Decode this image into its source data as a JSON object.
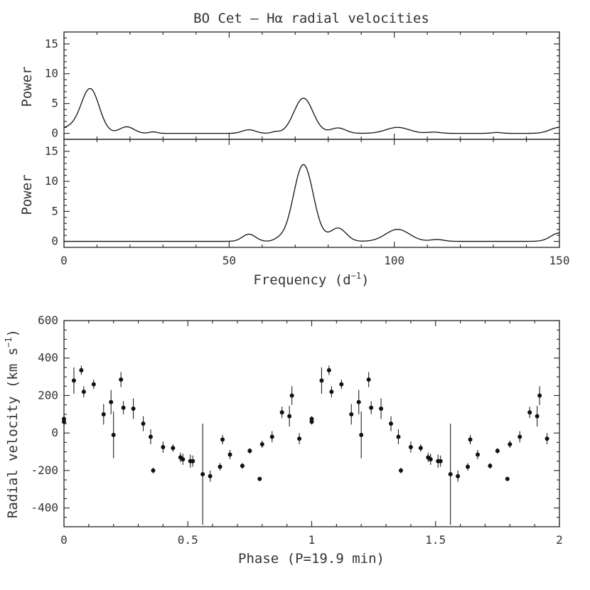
{
  "chart_data": [
    {
      "type": "line",
      "panel": "top-periodogram",
      "title": "BO Cet – Hα radial velocities",
      "xlabel": "",
      "ylabel": "Power",
      "xlim": [
        0,
        150
      ],
      "ylim": [
        -1,
        17
      ],
      "xticks": [
        0,
        50,
        100,
        150
      ],
      "yticks": [
        0,
        5,
        10,
        15
      ],
      "peaks": [
        {
          "center": 8,
          "width": 2.7,
          "height": 7.2
        },
        {
          "center": 2,
          "width": 4.0,
          "height": 1.0
        },
        {
          "center": 19,
          "width": 2.2,
          "height": 1.1
        },
        {
          "center": 27,
          "width": 1.2,
          "height": 0.25
        },
        {
          "center": 56,
          "width": 2.0,
          "height": 0.6
        },
        {
          "center": 64,
          "width": 1.2,
          "height": 0.25
        },
        {
          "center": 72.5,
          "width": 2.9,
          "height": 5.9
        },
        {
          "center": 83,
          "width": 2.3,
          "height": 0.9
        },
        {
          "center": 101,
          "width": 3.5,
          "height": 1.0
        },
        {
          "center": 112,
          "width": 2.0,
          "height": 0.2
        },
        {
          "center": 131,
          "width": 1.5,
          "height": 0.15
        },
        {
          "center": 150,
          "width": 2.8,
          "height": 1.0
        }
      ]
    },
    {
      "type": "line",
      "panel": "middle-periodogram",
      "xlabel": "Frequency (d",
      "xlabel_sup": "−1",
      "xlabel_end": ")",
      "ylabel": "Power",
      "xlim": [
        0,
        150
      ],
      "ylim": [
        -1,
        17
      ],
      "xticks": [
        0,
        50,
        100,
        150
      ],
      "yticks": [
        0,
        5,
        10,
        15
      ],
      "peaks": [
        {
          "center": 56,
          "width": 2.0,
          "height": 1.2
        },
        {
          "center": 65,
          "width": 1.5,
          "height": 0.3
        },
        {
          "center": 72.5,
          "width": 3.0,
          "height": 12.8
        },
        {
          "center": 83,
          "width": 2.4,
          "height": 2.2
        },
        {
          "center": 101,
          "width": 3.6,
          "height": 2.0
        },
        {
          "center": 113,
          "width": 2.0,
          "height": 0.3
        },
        {
          "center": 150,
          "width": 2.6,
          "height": 1.4
        }
      ]
    },
    {
      "type": "scatter",
      "panel": "radial-velocity-curve",
      "xlabel": "Phase (P=19.9 min)",
      "ylabel": "Radial velocity (km s",
      "ylabel_sup": "−1",
      "ylabel_end": ")",
      "xlim": [
        0,
        2
      ],
      "ylim": [
        -500,
        600
      ],
      "xticks": [
        0,
        0.5,
        1,
        1.5,
        2
      ],
      "yticks": [
        -400,
        -200,
        0,
        200,
        400,
        600
      ],
      "points": [
        {
          "x": 0.0,
          "y": 75,
          "err": 15
        },
        {
          "x": 0.0,
          "y": 60,
          "err": 15
        },
        {
          "x": 0.04,
          "y": 280,
          "err": 70
        },
        {
          "x": 0.07,
          "y": 335,
          "err": 25
        },
        {
          "x": 0.08,
          "y": 220,
          "err": 30
        },
        {
          "x": 0.12,
          "y": 260,
          "err": 25
        },
        {
          "x": 0.16,
          "y": 100,
          "err": 55
        },
        {
          "x": 0.19,
          "y": 165,
          "err": 65
        },
        {
          "x": 0.2,
          "y": -10,
          "err": 125
        },
        {
          "x": 0.23,
          "y": 285,
          "err": 40
        },
        {
          "x": 0.24,
          "y": 135,
          "err": 35
        },
        {
          "x": 0.28,
          "y": 130,
          "err": 55
        },
        {
          "x": 0.32,
          "y": 50,
          "err": 40
        },
        {
          "x": 0.35,
          "y": -20,
          "err": 40
        },
        {
          "x": 0.36,
          "y": -200,
          "err": 15
        },
        {
          "x": 0.4,
          "y": -75,
          "err": 30
        },
        {
          "x": 0.44,
          "y": -80,
          "err": 20
        },
        {
          "x": 0.47,
          "y": -130,
          "err": 25
        },
        {
          "x": 0.48,
          "y": -140,
          "err": 30
        },
        {
          "x": 0.51,
          "y": -150,
          "err": 35
        },
        {
          "x": 0.52,
          "y": -150,
          "err": 30
        },
        {
          "x": 0.56,
          "y": -220,
          "err": 270
        },
        {
          "x": 0.59,
          "y": -230,
          "err": 30
        },
        {
          "x": 0.63,
          "y": -180,
          "err": 20
        },
        {
          "x": 0.64,
          "y": -35,
          "err": 25
        },
        {
          "x": 0.67,
          "y": -115,
          "err": 25
        },
        {
          "x": 0.72,
          "y": -175,
          "err": 15
        },
        {
          "x": 0.75,
          "y": -95,
          "err": 15
        },
        {
          "x": 0.79,
          "y": -245,
          "err": 10
        },
        {
          "x": 0.8,
          "y": -60,
          "err": 20
        },
        {
          "x": 0.84,
          "y": -20,
          "err": 30
        },
        {
          "x": 0.88,
          "y": 110,
          "err": 30
        },
        {
          "x": 0.91,
          "y": 90,
          "err": 55
        },
        {
          "x": 0.92,
          "y": 200,
          "err": 50
        },
        {
          "x": 0.95,
          "y": -30,
          "err": 30
        }
      ]
    }
  ]
}
